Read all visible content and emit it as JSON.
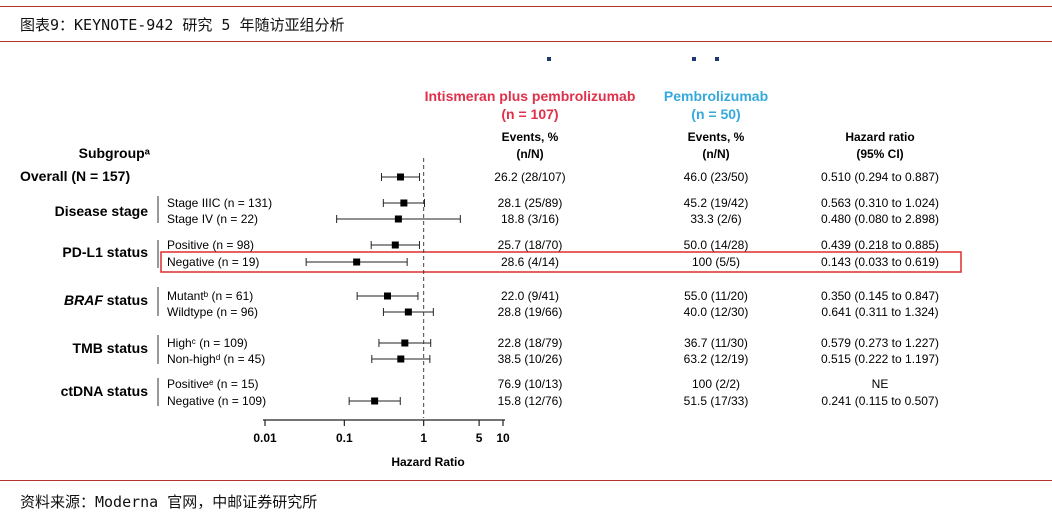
{
  "header": {
    "title": "图表9：KEYNOTE-942 研究 5 年随访亚组分析"
  },
  "source": {
    "text": "资料来源：Moderna 官网，中邮证券研究所"
  },
  "columns": {
    "subgroup": "Subgroupᵃ",
    "arm1_name": "Intismeran plus pembrolizumab",
    "arm1_n": "(n = 107)",
    "arm2_name": "Pembrolizumab",
    "arm2_n": "(n = 50)",
    "events_line1": "Events, %",
    "events_line2": "(n/N)",
    "hr_line1": "Hazard ratio",
    "hr_line2": "(95% CI)"
  },
  "colors": {
    "arm1": "#e0304a",
    "arm2": "#36a9dc",
    "highlight": "#e03a3a",
    "frame": "#b5322f"
  },
  "groups": [
    {
      "label": "Overall (N = 157)"
    },
    {
      "label": "Disease stage"
    },
    {
      "label": "PD-L1 status"
    },
    {
      "label_italic": "BRAF",
      "label_rest": " status"
    },
    {
      "label": "TMB status"
    },
    {
      "label": "ctDNA status"
    }
  ],
  "chart_data": {
    "type": "forest",
    "xlabel": "Hazard Ratio",
    "x_ticks": [
      "0.01",
      "0.1",
      "1",
      "5",
      "10"
    ],
    "x_scale": "log",
    "xlim": [
      0.01,
      10
    ],
    "reference_line": 1,
    "rows": [
      {
        "group": 0,
        "subgroup": "",
        "hr": 0.51,
        "lo": 0.294,
        "hi": 0.887,
        "arm1_events": "26.2 (28/107)",
        "arm2_events": "46.0 (23/50)",
        "hr_text": "0.510 (0.294 to 0.887)"
      },
      {
        "group": 1,
        "subgroup": "Stage IIIC (n = 131)",
        "hr": 0.563,
        "lo": 0.31,
        "hi": 1.024,
        "arm1_events": "28.1 (25/89)",
        "arm2_events": "45.2 (19/42)",
        "hr_text": "0.563 (0.310 to 1.024)"
      },
      {
        "group": 1,
        "subgroup": "Stage IV (n = 22)",
        "hr": 0.48,
        "lo": 0.08,
        "hi": 2.898,
        "arm1_events": "18.8 (3/16)",
        "arm2_events": "33.3 (2/6)",
        "hr_text": "0.480 (0.080 to 2.898)"
      },
      {
        "group": 2,
        "subgroup": "Positive (n = 98)",
        "hr": 0.439,
        "lo": 0.218,
        "hi": 0.885,
        "arm1_events": "25.7 (18/70)",
        "arm2_events": "50.0 (14/28)",
        "hr_text": "0.439 (0.218 to 0.885)"
      },
      {
        "group": 2,
        "subgroup": "Negative (n = 19)",
        "hr": 0.143,
        "lo": 0.033,
        "hi": 0.619,
        "arm1_events": "28.6 (4/14)",
        "arm2_events": "100 (5/5)",
        "hr_text": "0.143 (0.033 to 0.619)",
        "highlight": true
      },
      {
        "group": 3,
        "subgroup": "Mutantᵇ (n = 61)",
        "hr": 0.35,
        "lo": 0.145,
        "hi": 0.847,
        "arm1_events": "22.0 (9/41)",
        "arm2_events": "55.0 (11/20)",
        "hr_text": "0.350 (0.145 to 0.847)"
      },
      {
        "group": 3,
        "subgroup": "Wildtype (n = 96)",
        "hr": 0.641,
        "lo": 0.311,
        "hi": 1.324,
        "arm1_events": "28.8 (19/66)",
        "arm2_events": "40.0 (12/30)",
        "hr_text": "0.641 (0.311 to 1.324)"
      },
      {
        "group": 4,
        "subgroup": "Highᶜ (n = 109)",
        "hr": 0.579,
        "lo": 0.273,
        "hi": 1.227,
        "arm1_events": "22.8 (18/79)",
        "arm2_events": "36.7 (11/30)",
        "hr_text": "0.579 (0.273 to 1.227)"
      },
      {
        "group": 4,
        "subgroup": "Non-highᵈ (n = 45)",
        "hr": 0.515,
        "lo": 0.222,
        "hi": 1.197,
        "arm1_events": "38.5 (10/26)",
        "arm2_events": "63.2 (12/19)",
        "hr_text": "0.515 (0.222 to 1.197)"
      },
      {
        "group": 5,
        "subgroup": "Positiveᵉ (n = 15)",
        "hr": null,
        "lo": null,
        "hi": null,
        "arm1_events": "76.9 (10/13)",
        "arm2_events": "100 (2/2)",
        "hr_text": "NE"
      },
      {
        "group": 5,
        "subgroup": "Negative (n = 109)",
        "hr": 0.241,
        "lo": 0.115,
        "hi": 0.507,
        "arm1_events": "15.8 (12/76)",
        "arm2_events": "51.5 (17/33)",
        "hr_text": "0.241 (0.115 to 0.507)"
      }
    ]
  }
}
